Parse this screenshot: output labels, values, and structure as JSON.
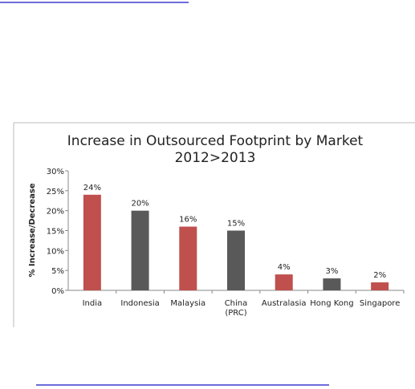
{
  "chart_data": {
    "type": "bar",
    "title": "Increase in Outsourced Footprint by Market",
    "subtitle": "2012>2013",
    "y_label": "% Increase/Decrease",
    "categories": [
      "India",
      "Indonesia",
      "Malaysia",
      "China (PRC)",
      "Australasia",
      "Hong Kong",
      "Singapore"
    ],
    "values": [
      24,
      20,
      16,
      15,
      4,
      3,
      2
    ],
    "value_labels": [
      "24%",
      "20%",
      "16%",
      "15%",
      "4%",
      "3%",
      "2%"
    ],
    "colors": [
      "#c0504d",
      "#595959",
      "#c0504d",
      "#595959",
      "#c0504d",
      "#595959",
      "#c0504d"
    ],
    "ylim": [
      0,
      30
    ],
    "yticks": [
      {
        "value": 0,
        "label": "0%"
      },
      {
        "value": 5,
        "label": "5%"
      },
      {
        "value": 10,
        "label": "10%"
      },
      {
        "value": 15,
        "label": "15%"
      },
      {
        "value": 20,
        "label": "20%"
      },
      {
        "value": 25,
        "label": "25%"
      },
      {
        "value": 30,
        "label": "30%"
      }
    ],
    "grid": false
  }
}
